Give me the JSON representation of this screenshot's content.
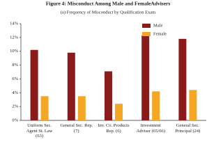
{
  "chart_data": {
    "type": "bar",
    "title": "Figure 4: Misconduct Among Male and FemaleAdvisers",
    "subtitle": "(a) Frequency of Misconduct by Qualification Exam",
    "categories": [
      "Uniform Sec. Agent St. Law (63)",
      "General Sec. Rep. (7)",
      "Inv. Co. Products Rep. (6)",
      "Investment Adviser (65/66)",
      "General Sec. Principal (24)"
    ],
    "series": [
      {
        "name": "Male",
        "color": "#8b1a1a",
        "values": [
          10.2,
          9.8,
          7.1,
          12.3,
          11.8
        ]
      },
      {
        "name": "Female",
        "color": "#f5a623",
        "values": [
          3.5,
          3.5,
          2.4,
          4.2,
          4.4
        ]
      }
    ],
    "ylim": [
      0,
      14
    ],
    "yticks": [
      {
        "value": 0,
        "label": "0%"
      },
      {
        "value": 2,
        "label": "2%"
      },
      {
        "value": 4,
        "label": "4%"
      },
      {
        "value": 6,
        "label": "6%"
      },
      {
        "value": 8,
        "label": "8%"
      },
      {
        "value": 10,
        "label": "10%"
      },
      {
        "value": 12,
        "label": "12%"
      },
      {
        "value": 14,
        "label": "14%"
      }
    ],
    "legend": "top-right"
  }
}
